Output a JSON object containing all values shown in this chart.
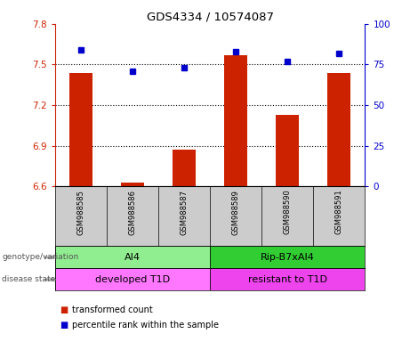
{
  "title": "GDS4334 / 10574087",
  "samples": [
    "GSM988585",
    "GSM988586",
    "GSM988587",
    "GSM988589",
    "GSM988590",
    "GSM988591"
  ],
  "bar_values": [
    7.44,
    6.63,
    6.87,
    7.57,
    7.13,
    7.44
  ],
  "percentile_values": [
    84,
    71,
    73,
    83,
    77,
    82
  ],
  "ylim_left": [
    6.6,
    7.8
  ],
  "ylim_right": [
    0,
    100
  ],
  "yticks_left": [
    6.6,
    6.9,
    7.2,
    7.5,
    7.8
  ],
  "yticks_right": [
    0,
    25,
    50,
    75,
    100
  ],
  "bar_color": "#cc2200",
  "dot_color": "#0000cc",
  "background_plot": "#ffffff",
  "genotype_groups": [
    {
      "label": "AI4",
      "start": 0,
      "end": 3,
      "color": "#90ee90"
    },
    {
      "label": "Rip-B7xAI4",
      "start": 3,
      "end": 6,
      "color": "#32cd32"
    }
  ],
  "disease_groups": [
    {
      "label": "developed T1D",
      "start": 0,
      "end": 3,
      "color": "#ff77ff"
    },
    {
      "label": "resistant to T1D",
      "start": 3,
      "end": 6,
      "color": "#ee44ee"
    }
  ],
  "genotype_label": "genotype/variation",
  "disease_label": "disease state",
  "legend_red": "transformed count",
  "legend_blue": "percentile rank within the sample",
  "sample_bg_color": "#cccccc",
  "left_axis_color": "#cc2200",
  "right_axis_color": "#0000cc",
  "grid_vals": [
    6.9,
    7.2,
    7.5
  ]
}
